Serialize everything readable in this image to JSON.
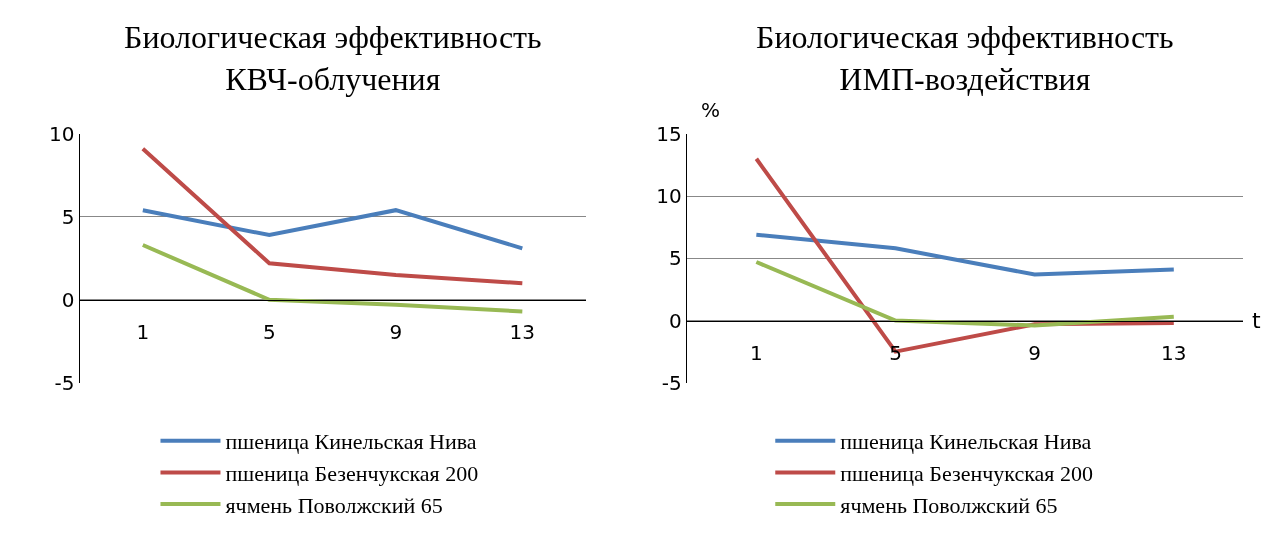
{
  "chart_data": [
    {
      "type": "line",
      "title": "Биологическая эффективность\nКВЧ-облучения",
      "categories": [
        "1",
        "5",
        "9",
        "13"
      ],
      "ylim": [
        -5,
        10
      ],
      "yticks": [
        -5,
        0,
        5,
        10
      ],
      "grid": "y",
      "legend": "bottom",
      "marker": "none",
      "line_style": "solid",
      "series": [
        {
          "name": "пшеница Кинельская Нива",
          "color": "#4a7ebb",
          "values": [
            5.4,
            3.9,
            5.4,
            3.1
          ]
        },
        {
          "name": "пшеница Безенчукская 200",
          "color": "#be4b48",
          "values": [
            9.1,
            2.2,
            1.5,
            1.0
          ]
        },
        {
          "name": "ячмень Поволжский 65",
          "color": "#98b954",
          "values": [
            3.3,
            0.0,
            -0.3,
            -0.7
          ]
        }
      ]
    },
    {
      "type": "line",
      "title": "Биологическая эффективность\nИМП-воздействия",
      "xlabel": "t",
      "ylabel": "%",
      "categories": [
        "1",
        "5",
        "9",
        "13"
      ],
      "ylim": [
        -5,
        15
      ],
      "yticks": [
        -5,
        0,
        5,
        10,
        15
      ],
      "grid": "y",
      "legend": "bottom",
      "marker": "none",
      "line_style": "solid",
      "series": [
        {
          "name": "пшеница Кинельская Нива",
          "color": "#4a7ebb",
          "values": [
            6.9,
            5.8,
            3.7,
            4.1
          ]
        },
        {
          "name": "пшеница Безенчукская 200",
          "color": "#be4b48",
          "values": [
            13.0,
            -2.5,
            -0.3,
            -0.2
          ]
        },
        {
          "name": "ячмень Поволжский 65",
          "color": "#98b954",
          "values": [
            4.7,
            0.0,
            -0.4,
            0.3
          ]
        }
      ]
    }
  ]
}
